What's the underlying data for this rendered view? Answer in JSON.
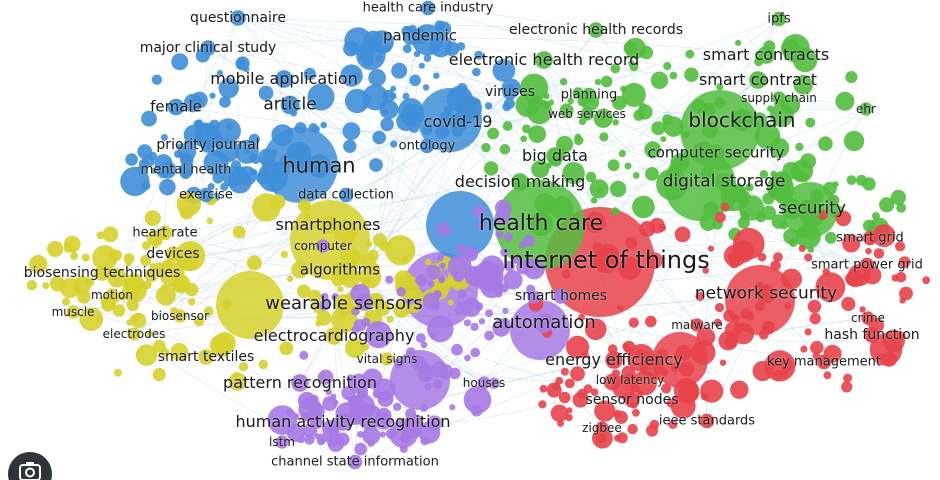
{
  "colors": {
    "red": "#e8424b",
    "green": "#52bd3e",
    "blue": "#3f8ed8",
    "yellow": "#d6d12c",
    "purple": "#a679e4",
    "edge": "#9ec7e6"
  },
  "terms": [
    {
      "text": "questionnaire",
      "cluster": "blue"
    },
    {
      "text": "health care industry",
      "cluster": "blue"
    },
    {
      "text": "ipfs",
      "cluster": "green"
    },
    {
      "text": "electronic health records",
      "cluster": "green"
    },
    {
      "text": "pandemic",
      "cluster": "blue"
    },
    {
      "text": "major clinical study",
      "cluster": "blue"
    },
    {
      "text": "smart contracts",
      "cluster": "green"
    },
    {
      "text": "electronic health record",
      "cluster": "green"
    },
    {
      "text": "mobile application",
      "cluster": "blue"
    },
    {
      "text": "smart contract",
      "cluster": "green"
    },
    {
      "text": "viruses",
      "cluster": "blue"
    },
    {
      "text": "planning",
      "cluster": "green"
    },
    {
      "text": "supply chain",
      "cluster": "green"
    },
    {
      "text": "female",
      "cluster": "blue"
    },
    {
      "text": "article",
      "cluster": "blue"
    },
    {
      "text": "web services",
      "cluster": "green"
    },
    {
      "text": "ehr",
      "cluster": "green"
    },
    {
      "text": "covid-19",
      "cluster": "blue"
    },
    {
      "text": "blockchain",
      "cluster": "green"
    },
    {
      "text": "priority journal",
      "cluster": "blue"
    },
    {
      "text": "ontology",
      "cluster": "blue"
    },
    {
      "text": "big data",
      "cluster": "green"
    },
    {
      "text": "computer security",
      "cluster": "green"
    },
    {
      "text": "human",
      "cluster": "blue"
    },
    {
      "text": "mental health",
      "cluster": "blue"
    },
    {
      "text": "decision making",
      "cluster": "green"
    },
    {
      "text": "digital storage",
      "cluster": "green"
    },
    {
      "text": "exercise",
      "cluster": "blue"
    },
    {
      "text": "data collection",
      "cluster": "blue"
    },
    {
      "text": "security",
      "cluster": "green"
    },
    {
      "text": "smartphones",
      "cluster": "yellow"
    },
    {
      "text": "health care",
      "cluster": "green"
    },
    {
      "text": "heart rate",
      "cluster": "yellow"
    },
    {
      "text": "smart grid",
      "cluster": "red"
    },
    {
      "text": "computer",
      "cluster": "purple"
    },
    {
      "text": "devices",
      "cluster": "yellow"
    },
    {
      "text": "internet of things",
      "cluster": "red"
    },
    {
      "text": "smart power grid",
      "cluster": "red"
    },
    {
      "text": "algorithms",
      "cluster": "yellow"
    },
    {
      "text": "biosensing techniques",
      "cluster": "yellow"
    },
    {
      "text": "motion",
      "cluster": "yellow"
    },
    {
      "text": "smart homes",
      "cluster": "purple"
    },
    {
      "text": "network security",
      "cluster": "red"
    },
    {
      "text": "wearable sensors",
      "cluster": "yellow"
    },
    {
      "text": "muscle",
      "cluster": "yellow"
    },
    {
      "text": "biosensor",
      "cluster": "yellow"
    },
    {
      "text": "crime",
      "cluster": "red"
    },
    {
      "text": "automation",
      "cluster": "purple"
    },
    {
      "text": "malware",
      "cluster": "red"
    },
    {
      "text": "electrodes",
      "cluster": "yellow"
    },
    {
      "text": "electrocardiography",
      "cluster": "yellow"
    },
    {
      "text": "hash function",
      "cluster": "red"
    },
    {
      "text": "smart textiles",
      "cluster": "yellow"
    },
    {
      "text": "vital signs",
      "cluster": "yellow"
    },
    {
      "text": "energy efficiency",
      "cluster": "red"
    },
    {
      "text": "key management",
      "cluster": "red"
    },
    {
      "text": "low latency",
      "cluster": "red"
    },
    {
      "text": "pattern recognition",
      "cluster": "purple"
    },
    {
      "text": "houses",
      "cluster": "purple"
    },
    {
      "text": "sensor nodes",
      "cluster": "red"
    },
    {
      "text": "ieee standards",
      "cluster": "red"
    },
    {
      "text": "human activity recognition",
      "cluster": "purple"
    },
    {
      "text": "zigbee",
      "cluster": "red"
    },
    {
      "text": "lstm",
      "cluster": "purple"
    },
    {
      "text": "channel state information",
      "cluster": "purple"
    }
  ],
  "lens_button": {
    "icon": "camera-lens-icon"
  }
}
